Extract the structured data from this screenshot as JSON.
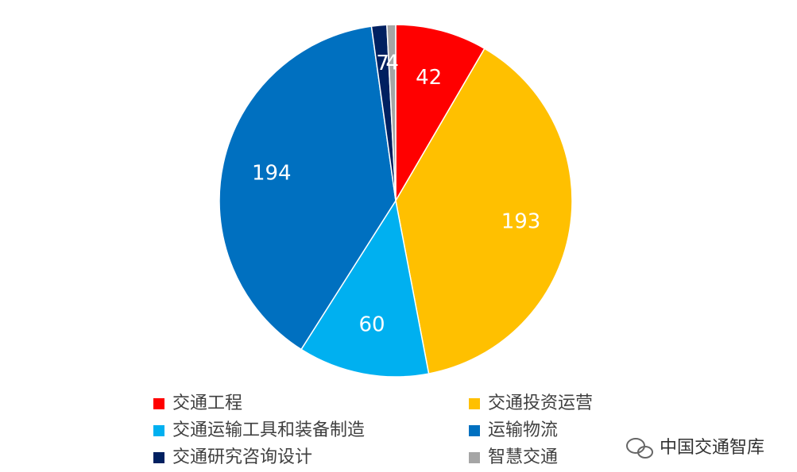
{
  "chart_data": {
    "type": "pie",
    "categories": [
      "交通工程",
      "交通投资运营",
      "交通运输工具和装备制造",
      "运输物流",
      "交通研究咨询设计",
      "智慧交通"
    ],
    "values": [
      42,
      193,
      60,
      194,
      7,
      4
    ],
    "colors": [
      "#ff0000",
      "#ffc000",
      "#00b0f0",
      "#0070c0",
      "#002060",
      "#a5a5a5"
    ],
    "legend": "bottom"
  },
  "watermark": "中国交通智库"
}
